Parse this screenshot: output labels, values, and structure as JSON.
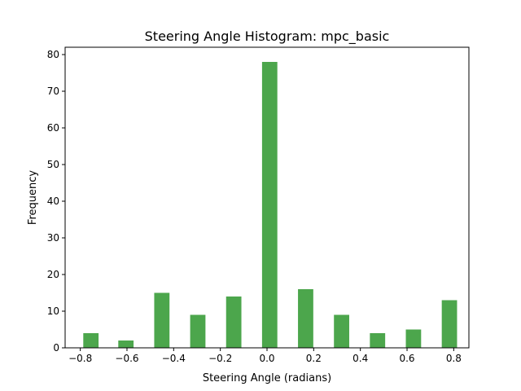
{
  "chart_data": {
    "type": "bar",
    "title": "Steering Angle Histogram: mpc_basic",
    "xlabel": "Steering Angle (radians)",
    "ylabel": "Frequency",
    "xlim": [
      -0.865,
      0.865
    ],
    "ylim": [
      0,
      82
    ],
    "xticks": [
      -0.8,
      -0.6,
      -0.4,
      -0.2,
      0.0,
      0.2,
      0.4,
      0.6,
      0.8
    ],
    "xtick_labels": [
      "−0.8",
      "−0.6",
      "−0.4",
      "−0.2",
      "0.0",
      "0.2",
      "0.4",
      "0.6",
      "0.8"
    ],
    "yticks": [
      0,
      10,
      20,
      30,
      40,
      50,
      60,
      70,
      80
    ],
    "ytick_labels": [
      "0",
      "10",
      "20",
      "30",
      "40",
      "50",
      "60",
      "70",
      "80"
    ],
    "bar_width": 0.0655,
    "color": "#4ca64c",
    "grid": false,
    "bars": [
      {
        "x": -0.7545,
        "value": 4
      },
      {
        "x": -0.6045,
        "value": 2
      },
      {
        "x": -0.4505,
        "value": 15
      },
      {
        "x": -0.2965,
        "value": 9
      },
      {
        "x": -0.1425,
        "value": 14
      },
      {
        "x": 0.0115,
        "value": 78
      },
      {
        "x": 0.1655,
        "value": 16
      },
      {
        "x": 0.3195,
        "value": 9
      },
      {
        "x": 0.4735,
        "value": 4
      },
      {
        "x": 0.6275,
        "value": 5
      },
      {
        "x": 0.7815,
        "value": 13
      }
    ]
  }
}
